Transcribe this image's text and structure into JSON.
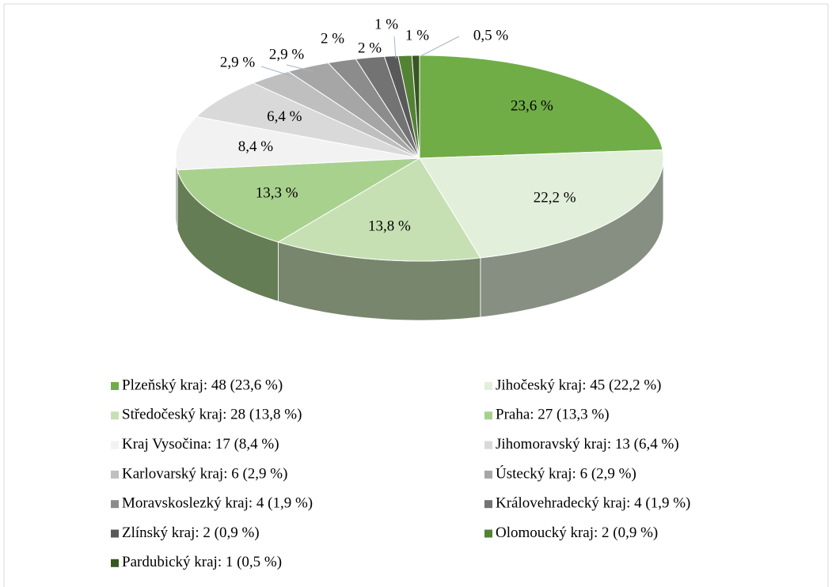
{
  "chart_data": {
    "type": "pie3d",
    "categories": [
      "Plzeňský kraj: 48 (23,6 %)",
      "Jihočeský kraj: 45 (22,2 %)",
      "Středočeský kraj: 28 (13,8 %)",
      "Praha: 27 (13,3 %)",
      "Kraj Vysočina: 17 (8,4 %)",
      "Jihomoravský kraj: 13 (6,4 %)",
      "Karlovarský kraj: 6 (2,9 %)",
      "Ústecký kraj: 6 (2,9 %)",
      "Moravskoslezký kraj: 4 (1,9 %)",
      "Královehradecký kraj: 4 (1,9 %)",
      "Zlínský kraj: 2 (0,9 %)",
      "Olomoucký kraj: 2 (0,9 %)",
      "Pardubický kraj: 1 (0,5 %)"
    ],
    "values": [
      23.6,
      22.2,
      13.8,
      13.3,
      8.4,
      6.4,
      2.9,
      2.9,
      1.9,
      1.9,
      0.9,
      0.9,
      0.5
    ],
    "value_labels": [
      "23,6 %",
      "22,2 %",
      "13,8 %",
      "13,3 %",
      "8,4 %",
      "6,4 %",
      "2,9 %",
      "2,9 %",
      "2 %",
      "2 %",
      "1 %",
      "1 %",
      "0,5 %"
    ],
    "colors": [
      "#70ad47",
      "#e2efda",
      "#c6e0b4",
      "#a9d18e",
      "#f2f2f2",
      "#d9d9d9",
      "#bfbfbf",
      "#a6a6a6",
      "#8c8c8c",
      "#737373",
      "#595959",
      "#548235",
      "#375623"
    ],
    "legend": "bottom"
  }
}
